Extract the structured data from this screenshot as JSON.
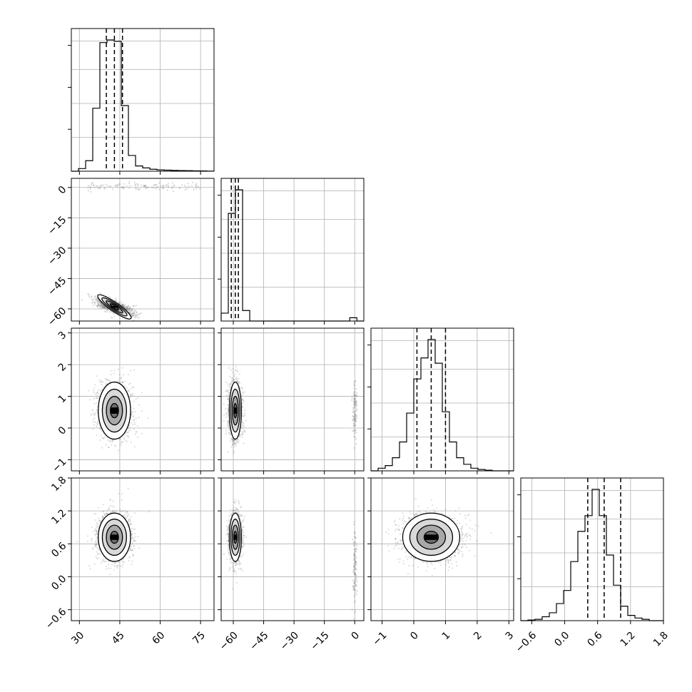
{
  "chart_data": {
    "type": "corner",
    "n_params": 4,
    "quantiles": [
      0.16,
      0.5,
      0.84
    ],
    "params": [
      {
        "range": [
          27,
          80
        ],
        "ticks": [
          30,
          45,
          60,
          75
        ],
        "tick_labels": [
          "30",
          "45",
          "60",
          "75"
        ],
        "hist": {
          "edges_start": 27,
          "bin_width": 2.65,
          "counts": [
            0,
            0.02,
            0.08,
            0.48,
            0.98,
            1.0,
            0.99,
            0.5,
            0.12,
            0.04,
            0.025,
            0.015,
            0.01,
            0.008,
            0.006,
            0.005,
            0.004,
            0.003,
            0.002,
            0.001
          ]
        },
        "quantile_values": [
          40,
          43,
          46
        ]
      },
      {
        "range": [
          -66,
          4.5
        ],
        "ticks": [
          -60,
          -45,
          -30,
          -15,
          0
        ],
        "tick_labels": [
          "−60",
          "−45",
          "−30",
          "−15",
          "0"
        ],
        "hist": {
          "edges_start": -66,
          "bin_width": 3.53,
          "counts": [
            0.06,
            0.82,
            1.0,
            0.08,
            0,
            0,
            0,
            0,
            0,
            0,
            0,
            0,
            0,
            0,
            0,
            0,
            0,
            0,
            0.025,
            0
          ]
        },
        "quantile_values": [
          -61,
          -59,
          -57.5
        ]
      },
      {
        "range": [
          -1.35,
          3.15
        ],
        "ticks": [
          -1,
          0,
          1,
          2,
          3
        ],
        "tick_labels": [
          "−1",
          "0",
          "1",
          "2",
          "3"
        ],
        "hist": {
          "edges_start": -1.35,
          "bin_width": 0.225,
          "counts": [
            0,
            0.02,
            0.04,
            0.1,
            0.22,
            0.44,
            0.7,
            0.86,
            1.0,
            0.82,
            0.45,
            0.22,
            0.1,
            0.05,
            0.02,
            0.01,
            0.005,
            0,
            0,
            0
          ]
        },
        "quantile_values": [
          0.1,
          0.55,
          1.0
        ]
      },
      {
        "range": [
          -0.8,
          1.8
        ],
        "ticks": [
          -0.6,
          0.0,
          0.6,
          1.2,
          1.8
        ],
        "tick_labels": [
          "−0.6",
          "0.0",
          "0.6",
          "1.2",
          "1.8"
        ],
        "hist": {
          "edges_start": -0.8,
          "bin_width": 0.13,
          "counts": [
            0,
            0.005,
            0.01,
            0.03,
            0.06,
            0.13,
            0.23,
            0.45,
            0.68,
            0.8,
            1.0,
            0.8,
            0.5,
            0.27,
            0.11,
            0.04,
            0.02,
            0.01,
            0,
            0
          ]
        },
        "quantile_values": [
          0.42,
          0.72,
          1.02
        ]
      }
    ],
    "pairs": [
      {
        "row": 1,
        "col": 0,
        "center": [
          43,
          -59
        ],
        "sd": [
          3.0,
          2.0
        ],
        "rho": -0.7,
        "secondary": {
          "x_range": [
            33,
            75
          ],
          "y_center": 0.5,
          "y_sd": 0.9
        }
      },
      {
        "row": 2,
        "col": 0,
        "center": [
          43,
          0.55
        ],
        "sd": [
          3.0,
          0.45
        ],
        "rho": 0
      },
      {
        "row": 2,
        "col": 1,
        "center": [
          -59,
          0.55
        ],
        "sd": [
          1.5,
          0.45
        ],
        "rho": 0,
        "secondary": {
          "x_center": 0,
          "x_sd": 0.5,
          "y_center": 0.6,
          "y_sd": 0.45
        }
      },
      {
        "row": 3,
        "col": 0,
        "center": [
          43,
          0.72
        ],
        "sd": [
          3.0,
          0.22
        ],
        "rho": 0
      },
      {
        "row": 3,
        "col": 1,
        "center": [
          -59,
          0.72
        ],
        "sd": [
          1.5,
          0.22
        ],
        "rho": 0,
        "secondary": {
          "x_center": 0,
          "x_sd": 0.5,
          "y_center": 0.2,
          "y_sd": 0.35
        }
      },
      {
        "row": 3,
        "col": 2,
        "center": [
          0.55,
          0.72
        ],
        "sd": [
          0.45,
          0.22
        ],
        "rho": 0
      }
    ],
    "contour_levels_sigma": [
      0.5,
      1.0,
      1.5,
      2.0
    ],
    "grid": true,
    "colors": {
      "line": "#000000",
      "sample": "#808080",
      "grid": "#b0b0b0"
    }
  }
}
